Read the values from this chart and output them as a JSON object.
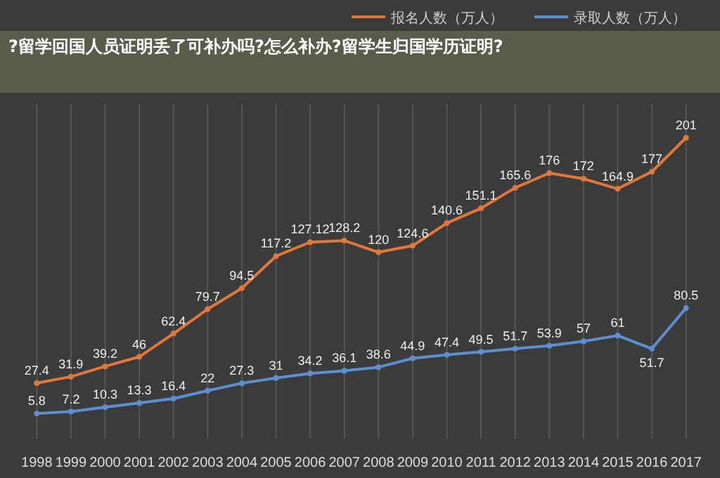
{
  "chart_data": {
    "type": "line",
    "title": "?留学回国人员证明丢了可补办吗?怎么补办?留学生归国学历证明?",
    "categories": [
      "1998",
      "1999",
      "2000",
      "2001",
      "2002",
      "2003",
      "2004",
      "2005",
      "2006",
      "2007",
      "2008",
      "2009",
      "2010",
      "2011",
      "2012",
      "2013",
      "2014",
      "2015",
      "2016",
      "2017"
    ],
    "series": [
      {
        "name": "报名人数（万人）",
        "color": "#e0783a",
        "values": [
          27.4,
          31.9,
          39.2,
          46,
          62.4,
          79.7,
          94.5,
          117.2,
          127.12,
          128.2,
          120,
          124.6,
          140.6,
          151.1,
          165.6,
          176,
          172,
          164.9,
          177,
          201
        ]
      },
      {
        "name": "录取人数（万人）",
        "color": "#5b8fcf",
        "values": [
          5.8,
          7.2,
          10.3,
          13.3,
          16.4,
          22,
          27.3,
          31,
          34.2,
          36.1,
          38.6,
          44.9,
          47.4,
          49.5,
          51.7,
          53.9,
          57,
          61,
          51.7,
          80.5
        ]
      }
    ],
    "data_labels": true,
    "grid": "x",
    "legend": "top",
    "marker": "circle"
  }
}
